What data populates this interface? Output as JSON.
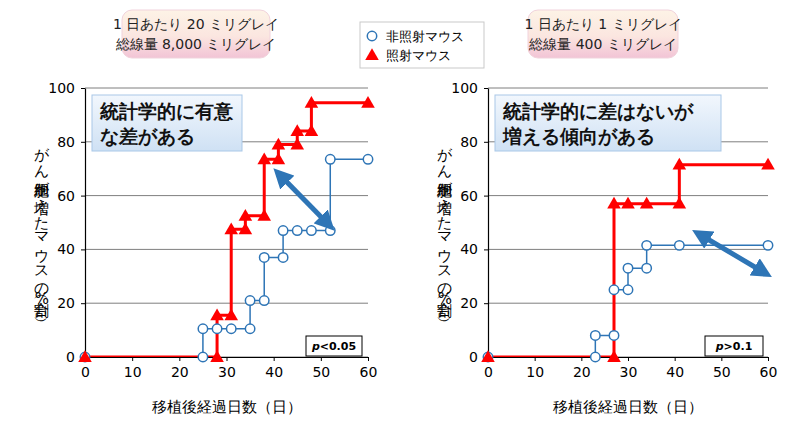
{
  "chart_data": [
    {
      "type": "step",
      "title": "1 日あたり 20 ミリグレイ",
      "subtitle": "総線量 8,000 ミリグレイ",
      "x_label": "移植後経過日数（日）",
      "y_label": "がん細胞が増えたマウスの割合（%）",
      "annotation": [
        "統計学的に有意",
        "な差がある"
      ],
      "p_label": "p<0.05",
      "xlim": [
        0,
        60
      ],
      "xticks": [
        0,
        10,
        20,
        30,
        40,
        50,
        60
      ],
      "ylim": [
        0,
        100
      ],
      "yticks": [
        0,
        20,
        40,
        60,
        80,
        100
      ],
      "grid": true,
      "legend": "top",
      "series": [
        {
          "name": "非照射マウス",
          "color": "#2e75b6",
          "marker": "circle",
          "line_style": "solid",
          "x": [
            0,
            25,
            25,
            28,
            31,
            35,
            35,
            38,
            38,
            42,
            42,
            45,
            48,
            52,
            52,
            60
          ],
          "values": [
            0,
            0,
            10.5,
            10.5,
            10.5,
            10.5,
            21,
            21,
            37,
            37,
            47,
            47,
            47,
            47,
            73.5,
            73.5
          ]
        },
        {
          "name": "照射マウス",
          "color": "#ff0000",
          "marker": "triangle",
          "line_style": "solid",
          "x": [
            0,
            28,
            28,
            31,
            31,
            34,
            34,
            38,
            38,
            41,
            41,
            45,
            45,
            48,
            48,
            60
          ],
          "values": [
            0,
            0,
            15.5,
            15.5,
            47.5,
            47.5,
            52.5,
            52.5,
            73.5,
            73.5,
            79,
            79,
            84,
            84,
            94.5,
            94.5
          ]
        }
      ]
    },
    {
      "type": "step",
      "title": "1 日あたり 1 ミリグレイ",
      "subtitle": "総線量 400 ミリグレイ",
      "x_label": "移植後経過日数（日）",
      "y_label": "がん細胞が増えたマウスの割合（%）",
      "annotation": [
        "統計学的に差はないが",
        "増える傾向がある"
      ],
      "p_label": "p>0.1",
      "xlim": [
        0,
        60
      ],
      "xticks": [
        0,
        10,
        20,
        30,
        40,
        50,
        60
      ],
      "ylim": [
        0,
        100
      ],
      "yticks": [
        0,
        20,
        40,
        60,
        80,
        100
      ],
      "grid": true,
      "series": [
        {
          "name": "非照射マウス",
          "color": "#2e75b6",
          "marker": "circle",
          "line_style": "solid",
          "x": [
            0,
            23,
            23,
            27,
            27,
            30,
            30,
            34,
            34,
            41,
            60
          ],
          "values": [
            0,
            0,
            8,
            8,
            25,
            25,
            33,
            33,
            41.5,
            41.5,
            41.5
          ]
        },
        {
          "name": "照射マウス",
          "color": "#ff0000",
          "marker": "triangle",
          "line_style": "solid",
          "x": [
            0,
            27,
            27,
            30,
            34,
            41,
            41,
            60
          ],
          "values": [
            0,
            0,
            57,
            57,
            57,
            57,
            71.5,
            71.5
          ]
        }
      ]
    }
  ]
}
